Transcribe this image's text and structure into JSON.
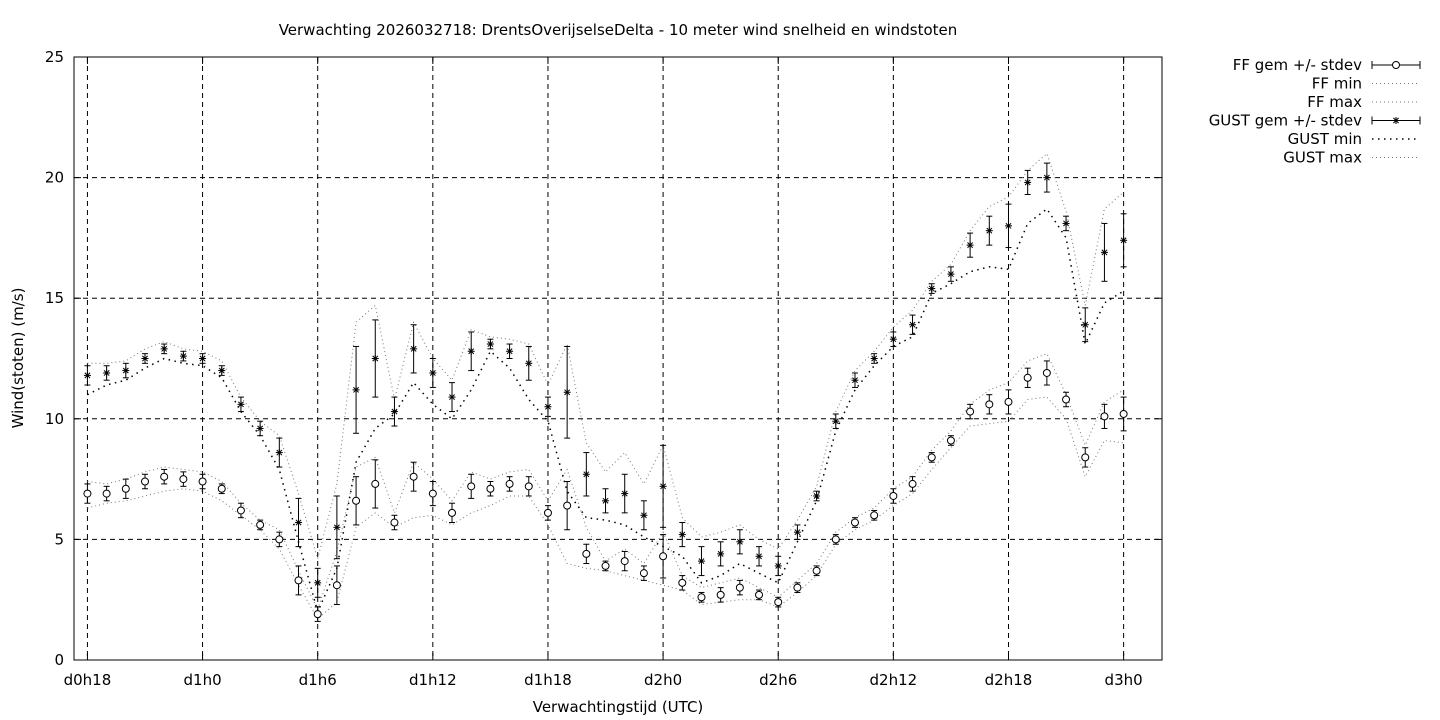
{
  "chart_data": {
    "type": "line",
    "title": "Verwachting 2026032718: DrentsOverijselseDelta - 10 meter wind snelheid en windstoten",
    "xlabel": "Verwachtingstijd (UTC)",
    "ylabel": "Wind(stoten) (m/s)",
    "ylim": [
      0,
      25
    ],
    "yticks": [
      0,
      5,
      10,
      15,
      20,
      25
    ],
    "xlim": [
      17.3,
      74.0
    ],
    "xticks": [
      {
        "value": 18,
        "label": "d0h18"
      },
      {
        "value": 24,
        "label": "d1h0"
      },
      {
        "value": 30,
        "label": "d1h6"
      },
      {
        "value": 36,
        "label": "d1h12"
      },
      {
        "value": 42,
        "label": "d1h18"
      },
      {
        "value": 48,
        "label": "d2h0"
      },
      {
        "value": 54,
        "label": "d2h6"
      },
      {
        "value": 60,
        "label": "d2h12"
      },
      {
        "value": 66,
        "label": "d2h18"
      },
      {
        "value": 72,
        "label": "d3h0"
      }
    ],
    "grid": true,
    "legend_position": "outside-top-right",
    "x": [
      18,
      19,
      20,
      21,
      22,
      23,
      24,
      25,
      26,
      27,
      28,
      29,
      30,
      31,
      32,
      33,
      34,
      35,
      36,
      37,
      38,
      39,
      40,
      41,
      42,
      43,
      44,
      45,
      46,
      47,
      48,
      49,
      50,
      51,
      52,
      53,
      54,
      55,
      56,
      57,
      58,
      59,
      60,
      61,
      62,
      63,
      64,
      65,
      66,
      67,
      68,
      69,
      70,
      71,
      72
    ],
    "series": [
      {
        "name": "FF gem +/- stdev",
        "marker": "circle",
        "values": [
          6.9,
          6.9,
          7.1,
          7.4,
          7.6,
          7.5,
          7.4,
          7.1,
          6.2,
          5.6,
          5.0,
          3.3,
          1.9,
          3.1,
          6.6,
          7.3,
          5.7,
          7.6,
          6.9,
          6.1,
          7.2,
          7.1,
          7.3,
          7.2,
          6.1,
          6.4,
          4.4,
          3.9,
          4.1,
          3.6,
          4.3,
          3.2,
          2.6,
          2.7,
          3.0,
          2.7,
          2.4,
          3.0,
          3.7,
          5.0,
          5.7,
          6.0,
          6.8,
          7.3,
          8.4,
          9.1,
          10.3,
          10.6,
          10.7,
          11.7,
          11.9,
          10.8,
          8.4,
          10.1,
          10.2
        ],
        "stdev": [
          0.4,
          0.3,
          0.4,
          0.3,
          0.3,
          0.3,
          0.3,
          0.2,
          0.3,
          0.2,
          0.3,
          0.6,
          0.3,
          0.8,
          1.0,
          1.0,
          0.3,
          0.6,
          0.5,
          0.4,
          0.5,
          0.3,
          0.3,
          0.4,
          0.3,
          1.0,
          0.4,
          0.2,
          0.4,
          0.3,
          0.9,
          0.3,
          0.2,
          0.3,
          0.3,
          0.2,
          0.2,
          0.2,
          0.2,
          0.2,
          0.2,
          0.2,
          0.3,
          0.3,
          0.2,
          0.2,
          0.3,
          0.4,
          0.5,
          0.4,
          0.5,
          0.3,
          0.4,
          0.5,
          0.7
        ]
      },
      {
        "name": "FF min",
        "values": [
          6.3,
          6.5,
          6.6,
          6.8,
          7.0,
          7.1,
          7.0,
          6.6,
          6.0,
          5.4,
          4.6,
          3.1,
          1.7,
          2.4,
          5.5,
          6.1,
          5.5,
          5.9,
          6.0,
          5.6,
          6.1,
          6.4,
          6.8,
          6.8,
          5.6,
          4.0,
          3.8,
          3.7,
          3.5,
          3.3,
          3.1,
          2.9,
          2.3,
          2.4,
          2.5,
          2.5,
          2.2,
          2.8,
          3.5,
          4.8,
          5.4,
          5.8,
          6.4,
          6.9,
          7.9,
          8.8,
          9.7,
          9.8,
          9.9,
          10.8,
          10.9,
          10.0,
          7.6,
          9.1,
          9.0
        ]
      },
      {
        "name": "FF max",
        "values": [
          7.4,
          7.3,
          7.5,
          7.8,
          8.0,
          7.9,
          7.8,
          7.4,
          6.5,
          5.8,
          5.4,
          3.7,
          2.1,
          4.5,
          8.0,
          8.4,
          6.1,
          8.2,
          7.5,
          6.6,
          7.8,
          7.5,
          7.8,
          7.9,
          6.6,
          7.9,
          5.5,
          4.1,
          4.6,
          4.0,
          5.3,
          3.5,
          3.0,
          3.2,
          3.4,
          3.0,
          2.6,
          3.3,
          4.0,
          5.3,
          5.9,
          6.3,
          7.1,
          7.6,
          8.7,
          9.5,
          10.6,
          11.2,
          11.5,
          12.4,
          12.7,
          11.0,
          8.9,
          10.7,
          11.2
        ]
      },
      {
        "name": "GUST gem +/- stdev",
        "marker": "star",
        "values": [
          11.8,
          11.9,
          12.0,
          12.5,
          12.9,
          12.6,
          12.5,
          12.0,
          10.6,
          9.6,
          8.6,
          5.7,
          3.2,
          5.5,
          11.2,
          12.5,
          10.3,
          12.9,
          11.9,
          10.9,
          12.8,
          13.1,
          12.8,
          12.3,
          10.5,
          11.1,
          7.7,
          6.6,
          6.9,
          6.0,
          7.2,
          5.2,
          4.1,
          4.4,
          4.9,
          4.3,
          3.9,
          5.3,
          6.8,
          9.9,
          11.6,
          12.5,
          13.3,
          13.9,
          15.4,
          16.0,
          17.2,
          17.8,
          18.0,
          19.8,
          20.0,
          18.1,
          13.9,
          16.9,
          17.4
        ],
        "stdev": [
          0.4,
          0.3,
          0.3,
          0.2,
          0.2,
          0.2,
          0.2,
          0.2,
          0.3,
          0.3,
          0.6,
          1.0,
          0.6,
          1.3,
          1.8,
          1.6,
          0.6,
          1.0,
          0.6,
          0.6,
          0.8,
          0.2,
          0.3,
          0.7,
          0.4,
          1.9,
          0.9,
          0.5,
          0.8,
          0.6,
          1.7,
          0.5,
          0.6,
          0.5,
          0.5,
          0.4,
          0.4,
          0.3,
          0.2,
          0.3,
          0.3,
          0.2,
          0.3,
          0.4,
          0.2,
          0.3,
          0.5,
          0.6,
          0.9,
          0.5,
          0.6,
          0.3,
          0.7,
          1.2,
          1.1
        ]
      },
      {
        "name": "GUST min",
        "values": [
          11.0,
          11.4,
          11.6,
          12.1,
          12.5,
          12.3,
          12.2,
          11.7,
          10.3,
          9.3,
          7.9,
          4.9,
          2.0,
          3.8,
          8.2,
          9.6,
          10.2,
          11.5,
          10.6,
          10.0,
          11.2,
          12.8,
          12.1,
          10.8,
          9.9,
          7.0,
          5.9,
          5.8,
          5.6,
          5.1,
          4.7,
          4.3,
          3.2,
          3.5,
          4.0,
          3.6,
          3.2,
          4.9,
          6.6,
          9.5,
          11.2,
          12.2,
          13.0,
          13.4,
          15.2,
          15.6,
          16.1,
          16.3,
          16.2,
          18.1,
          18.7,
          17.5,
          13.1,
          14.8,
          15.3
        ]
      },
      {
        "name": "GUST max",
        "values": [
          12.3,
          12.3,
          12.4,
          12.9,
          13.2,
          12.9,
          12.8,
          12.4,
          10.9,
          9.9,
          9.3,
          6.9,
          4.2,
          7.3,
          14.0,
          14.7,
          10.8,
          14.0,
          12.5,
          11.6,
          13.7,
          13.4,
          13.3,
          13.1,
          11.4,
          13.1,
          9.0,
          7.8,
          8.6,
          7.3,
          8.9,
          5.9,
          5.1,
          5.3,
          5.6,
          5.0,
          4.6,
          5.8,
          7.2,
          10.3,
          12.0,
          12.8,
          13.8,
          14.5,
          15.7,
          16.4,
          17.8,
          18.8,
          19.2,
          20.3,
          21.0,
          18.6,
          14.7,
          18.7,
          19.4
        ]
      }
    ]
  }
}
